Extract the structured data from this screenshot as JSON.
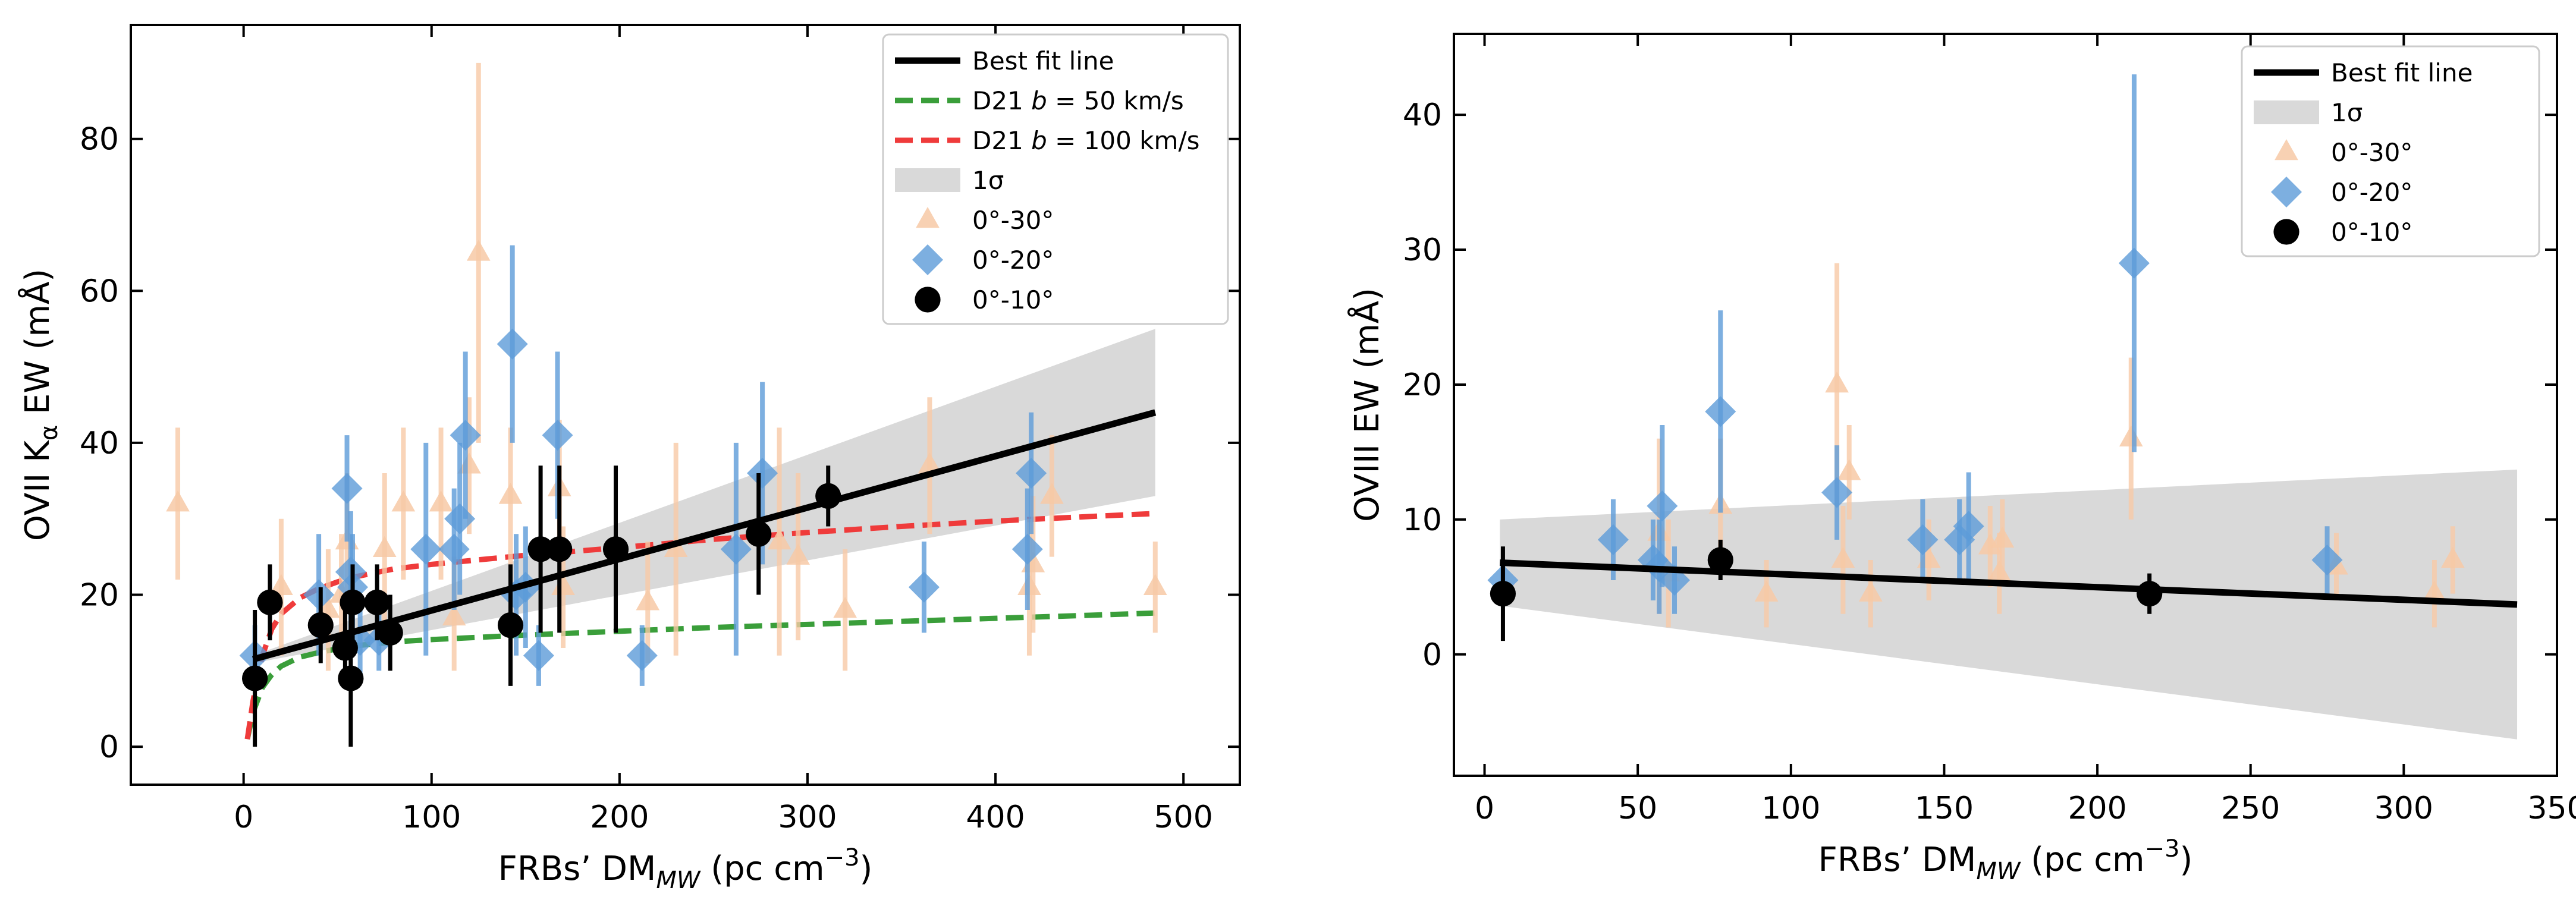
{
  "colors": {
    "fit": "#000000",
    "band": "#d9d9d9",
    "d21_b50": "#3a9e3a",
    "d21_b100": "#ef3b3b",
    "tri": "#f7c9a6",
    "diamond": "#5d9bd8",
    "circle": "#000000"
  },
  "chart_data": [
    {
      "type": "scatter",
      "title": "",
      "xlabel": "FRBs’ DM_MW (pc cm^-3)",
      "ylabel": "OVII Kα EW (mÅ)",
      "xlabel_parts": {
        "pre": "FRBs’ DM",
        "sub": "MW",
        "mid": " (pc cm",
        "sup": "−3",
        "post": ")"
      },
      "ylabel_parts": {
        "pre": "OVII K",
        "sub": "α",
        "post": " EW (mÅ)"
      },
      "xlim": [
        -60,
        530
      ],
      "ylim": [
        -5,
        95
      ],
      "xticks": [
        0,
        100,
        200,
        300,
        400,
        500
      ],
      "xtick_labels": [
        "0",
        "100",
        "200",
        "300",
        "400",
        "500"
      ],
      "yticks": [
        0,
        20,
        40,
        60,
        80
      ],
      "ytick_labels": [
        "0",
        "20",
        "40",
        "60",
        "80"
      ],
      "legend": {
        "position": "top-right",
        "entries": [
          {
            "kind": "line",
            "color": "fit",
            "label": "Best fit line"
          },
          {
            "kind": "dash",
            "color": "d21_b50",
            "label": "D21 b = 50 km/s",
            "parts": [
              "D21 ",
              "b",
              " = 50 km/s"
            ]
          },
          {
            "kind": "dash",
            "color": "d21_b100",
            "label": "D21 b = 100 km/s",
            "parts": [
              "D21 ",
              "b",
              " = 100 km/s"
            ]
          },
          {
            "kind": "patch",
            "color": "band",
            "label": "1σ"
          },
          {
            "kind": "tri",
            "color": "tri",
            "label": "0°-30°"
          },
          {
            "kind": "diamond",
            "color": "diamond",
            "label": "0°-20°"
          },
          {
            "kind": "circle",
            "color": "circle",
            "label": "0°-10°"
          }
        ]
      },
      "fit_line": {
        "x": [
          5,
          485
        ],
        "y": [
          11.5,
          44
        ]
      },
      "band": {
        "x": [
          5,
          485
        ],
        "upper": [
          12,
          55
        ],
        "lower": [
          11,
          33
        ]
      },
      "d21_b50": {
        "x": [
          2,
          5,
          10,
          15,
          20,
          30,
          40,
          50,
          60,
          80,
          100,
          150,
          200,
          250,
          300,
          350,
          400,
          450,
          485
        ],
        "y": [
          1,
          4.5,
          7.8,
          9.5,
          10.6,
          11.8,
          12.4,
          12.9,
          13.3,
          13.8,
          14.1,
          14.7,
          15.2,
          15.7,
          16.1,
          16.5,
          16.9,
          17.3,
          17.6
        ]
      },
      "d21_b100": {
        "x": [
          2,
          5,
          10,
          15,
          20,
          30,
          40,
          50,
          60,
          80,
          100,
          150,
          200,
          250,
          300,
          350,
          400,
          450,
          485
        ],
        "y": [
          1,
          6,
          12,
          15.5,
          17.5,
          19.6,
          20.8,
          21.7,
          22.4,
          23.4,
          24,
          25.2,
          26.2,
          27.3,
          28.2,
          29,
          29.7,
          30.3,
          30.7
        ]
      },
      "series": [
        {
          "name": "0°-30°",
          "marker": "tri",
          "color": "tri",
          "points": [
            {
              "x": -35,
              "y": 32,
              "lo": 22,
              "hi": 42
            },
            {
              "x": 20,
              "y": 21,
              "lo": 12,
              "hi": 30
            },
            {
              "x": 45,
              "y": 18,
              "lo": 10,
              "hi": 26
            },
            {
              "x": 52,
              "y": 20,
              "lo": 12,
              "hi": 28
            },
            {
              "x": 55,
              "y": 27,
              "lo": 18,
              "hi": 36
            },
            {
              "x": 75,
              "y": 26,
              "lo": 16,
              "hi": 36
            },
            {
              "x": 85,
              "y": 32,
              "lo": 22,
              "hi": 42
            },
            {
              "x": 105,
              "y": 32,
              "lo": 22,
              "hi": 42
            },
            {
              "x": 112,
              "y": 17,
              "lo": 10,
              "hi": 25
            },
            {
              "x": 120,
              "y": 37,
              "lo": 28,
              "hi": 46
            },
            {
              "x": 125,
              "y": 65,
              "lo": 40,
              "hi": 90
            },
            {
              "x": 142,
              "y": 33,
              "lo": 24,
              "hi": 42
            },
            {
              "x": 168,
              "y": 34,
              "lo": 25,
              "hi": 43
            },
            {
              "x": 170,
              "y": 21,
              "lo": 13,
              "hi": 29
            },
            {
              "x": 215,
              "y": 19,
              "lo": 11,
              "hi": 27
            },
            {
              "x": 230,
              "y": 26,
              "lo": 12,
              "hi": 40
            },
            {
              "x": 285,
              "y": 27,
              "lo": 12,
              "hi": 42
            },
            {
              "x": 295,
              "y": 25,
              "lo": 14,
              "hi": 36
            },
            {
              "x": 320,
              "y": 18,
              "lo": 10,
              "hi": 26
            },
            {
              "x": 365,
              "y": 37,
              "lo": 28,
              "hi": 46
            },
            {
              "x": 418,
              "y": 21,
              "lo": 12,
              "hi": 30
            },
            {
              "x": 420,
              "y": 24,
              "lo": 15,
              "hi": 33
            },
            {
              "x": 430,
              "y": 33,
              "lo": 25,
              "hi": 41
            },
            {
              "x": 485,
              "y": 21,
              "lo": 15,
              "hi": 27
            }
          ]
        },
        {
          "name": "0°-20°",
          "marker": "diamond",
          "color": "diamond",
          "points": [
            {
              "x": 6,
              "y": 12,
              "lo": 8,
              "hi": 16
            },
            {
              "x": 40,
              "y": 20,
              "lo": 12,
              "hi": 28
            },
            {
              "x": 55,
              "y": 34,
              "lo": 27,
              "hi": 41
            },
            {
              "x": 57,
              "y": 23,
              "lo": 15,
              "hi": 31
            },
            {
              "x": 58,
              "y": 21,
              "lo": 14,
              "hi": 28
            },
            {
              "x": 62,
              "y": 14,
              "lo": 9,
              "hi": 19
            },
            {
              "x": 72,
              "y": 14,
              "lo": 10,
              "hi": 18
            },
            {
              "x": 97,
              "y": 26,
              "lo": 12,
              "hi": 40
            },
            {
              "x": 112,
              "y": 26,
              "lo": 18,
              "hi": 34
            },
            {
              "x": 115,
              "y": 30,
              "lo": 20,
              "hi": 40
            },
            {
              "x": 118,
              "y": 41,
              "lo": 30,
              "hi": 52
            },
            {
              "x": 143,
              "y": 53,
              "lo": 40,
              "hi": 66
            },
            {
              "x": 145,
              "y": 20,
              "lo": 12,
              "hi": 28
            },
            {
              "x": 150,
              "y": 21,
              "lo": 13,
              "hi": 29
            },
            {
              "x": 157,
              "y": 12,
              "lo": 8,
              "hi": 16
            },
            {
              "x": 167,
              "y": 41,
              "lo": 30,
              "hi": 52
            },
            {
              "x": 212,
              "y": 12,
              "lo": 8,
              "hi": 16
            },
            {
              "x": 262,
              "y": 26,
              "lo": 12,
              "hi": 40
            },
            {
              "x": 276,
              "y": 36,
              "lo": 24,
              "hi": 48
            },
            {
              "x": 362,
              "y": 21,
              "lo": 15,
              "hi": 27
            },
            {
              "x": 417,
              "y": 26,
              "lo": 18,
              "hi": 34
            },
            {
              "x": 419,
              "y": 36,
              "lo": 28,
              "hi": 44
            }
          ]
        },
        {
          "name": "0°-10°",
          "marker": "circle",
          "color": "circle",
          "points": [
            {
              "x": 6,
              "y": 9,
              "lo": 0,
              "hi": 18
            },
            {
              "x": 14,
              "y": 19,
              "lo": 14,
              "hi": 24
            },
            {
              "x": 41,
              "y": 16,
              "lo": 11,
              "hi": 21
            },
            {
              "x": 54,
              "y": 13,
              "lo": 8,
              "hi": 18
            },
            {
              "x": 57,
              "y": 9,
              "lo": 0,
              "hi": 18
            },
            {
              "x": 58,
              "y": 19,
              "lo": 14,
              "hi": 24
            },
            {
              "x": 71,
              "y": 19,
              "lo": 14,
              "hi": 24
            },
            {
              "x": 78,
              "y": 15,
              "lo": 10,
              "hi": 20
            },
            {
              "x": 142,
              "y": 16,
              "lo": 8,
              "hi": 24
            },
            {
              "x": 158,
              "y": 26,
              "lo": 15,
              "hi": 37
            },
            {
              "x": 168,
              "y": 26,
              "lo": 15,
              "hi": 37
            },
            {
              "x": 198,
              "y": 26,
              "lo": 15,
              "hi": 37
            },
            {
              "x": 274,
              "y": 28,
              "lo": 20,
              "hi": 36
            },
            {
              "x": 311,
              "y": 33,
              "lo": 29,
              "hi": 37
            }
          ]
        }
      ]
    },
    {
      "type": "scatter",
      "title": "",
      "xlabel": "FRBs’ DM_MW (pc cm^-3)",
      "ylabel": "OVIII EW (mÅ)",
      "xlabel_parts": {
        "pre": "FRBs’ DM",
        "sub": "MW",
        "mid": " (pc cm",
        "sup": "−3",
        "post": ")"
      },
      "ylabel_parts": {
        "pre": "OVIII EW (mÅ)",
        "sub": "",
        "post": ""
      },
      "xlim": [
        -10,
        350
      ],
      "ylim": [
        -9,
        46
      ],
      "xticks": [
        0,
        50,
        100,
        150,
        200,
        250,
        300,
        350
      ],
      "xtick_labels": [
        "0",
        "50",
        "100",
        "150",
        "200",
        "250",
        "300",
        "350"
      ],
      "yticks": [
        0,
        10,
        20,
        30,
        40
      ],
      "ytick_labels": [
        "0",
        "10",
        "20",
        "30",
        "40"
      ],
      "legend": {
        "position": "top-right",
        "entries": [
          {
            "kind": "line",
            "color": "fit",
            "label": "Best fit line"
          },
          {
            "kind": "patch",
            "color": "band",
            "label": "1σ"
          },
          {
            "kind": "tri",
            "color": "tri",
            "label": "0°-30°"
          },
          {
            "kind": "diamond",
            "color": "diamond",
            "label": "0°-20°"
          },
          {
            "kind": "circle",
            "color": "circle",
            "label": "0°-10°"
          }
        ]
      },
      "fit_line": {
        "x": [
          5,
          337
        ],
        "y": [
          6.8,
          3.7
        ]
      },
      "band": {
        "x": [
          5,
          337
        ],
        "upper": [
          10,
          13.7
        ],
        "lower": [
          3.6,
          -6.3
        ]
      },
      "series": [
        {
          "name": "0°-30°",
          "marker": "tri",
          "color": "tri",
          "points": [
            {
              "x": 57,
              "y": 9,
              "lo": 3,
              "hi": 16
            },
            {
              "x": 60,
              "y": 6,
              "lo": 2,
              "hi": 10
            },
            {
              "x": 77,
              "y": 11,
              "lo": 6,
              "hi": 16
            },
            {
              "x": 92,
              "y": 4.5,
              "lo": 2,
              "hi": 7
            },
            {
              "x": 115,
              "y": 20,
              "lo": 11,
              "hi": 29
            },
            {
              "x": 117,
              "y": 7,
              "lo": 3,
              "hi": 11
            },
            {
              "x": 119,
              "y": 13.5,
              "lo": 10,
              "hi": 17
            },
            {
              "x": 126,
              "y": 4.5,
              "lo": 2,
              "hi": 7
            },
            {
              "x": 145,
              "y": 7,
              "lo": 4,
              "hi": 10
            },
            {
              "x": 165,
              "y": 8,
              "lo": 5,
              "hi": 11
            },
            {
              "x": 168,
              "y": 6,
              "lo": 3,
              "hi": 9
            },
            {
              "x": 169,
              "y": 8.5,
              "lo": 5.5,
              "hi": 11.5
            },
            {
              "x": 211,
              "y": 16,
              "lo": 10,
              "hi": 22
            },
            {
              "x": 278,
              "y": 6.5,
              "lo": 4,
              "hi": 9
            },
            {
              "x": 310,
              "y": 4.5,
              "lo": 2,
              "hi": 7
            },
            {
              "x": 316,
              "y": 7,
              "lo": 4.5,
              "hi": 9.5
            }
          ]
        },
        {
          "name": "0°-20°",
          "marker": "diamond",
          "color": "diamond",
          "points": [
            {
              "x": 6,
              "y": 5.5,
              "lo": 4,
              "hi": 7
            },
            {
              "x": 42,
              "y": 8.5,
              "lo": 5.5,
              "hi": 11.5
            },
            {
              "x": 55,
              "y": 7,
              "lo": 4,
              "hi": 10
            },
            {
              "x": 57,
              "y": 6.5,
              "lo": 3,
              "hi": 10
            },
            {
              "x": 58,
              "y": 11,
              "lo": 5,
              "hi": 17
            },
            {
              "x": 62,
              "y": 5.5,
              "lo": 3,
              "hi": 8
            },
            {
              "x": 77,
              "y": 18,
              "lo": 10.5,
              "hi": 25.5
            },
            {
              "x": 115,
              "y": 12,
              "lo": 8.5,
              "hi": 15.5
            },
            {
              "x": 143,
              "y": 8.5,
              "lo": 5.5,
              "hi": 11.5
            },
            {
              "x": 155,
              "y": 8.5,
              "lo": 5.5,
              "hi": 11.5
            },
            {
              "x": 158,
              "y": 9.5,
              "lo": 5.5,
              "hi": 13.5
            },
            {
              "x": 212,
              "y": 29,
              "lo": 15,
              "hi": 43
            },
            {
              "x": 275,
              "y": 7,
              "lo": 4.5,
              "hi": 9.5
            }
          ]
        },
        {
          "name": "0°-10°",
          "marker": "circle",
          "color": "circle",
          "points": [
            {
              "x": 6,
              "y": 4.5,
              "lo": 1,
              "hi": 8
            },
            {
              "x": 77,
              "y": 7,
              "lo": 5.5,
              "hi": 8.5
            },
            {
              "x": 217,
              "y": 4.5,
              "lo": 3,
              "hi": 6
            }
          ]
        }
      ]
    }
  ]
}
